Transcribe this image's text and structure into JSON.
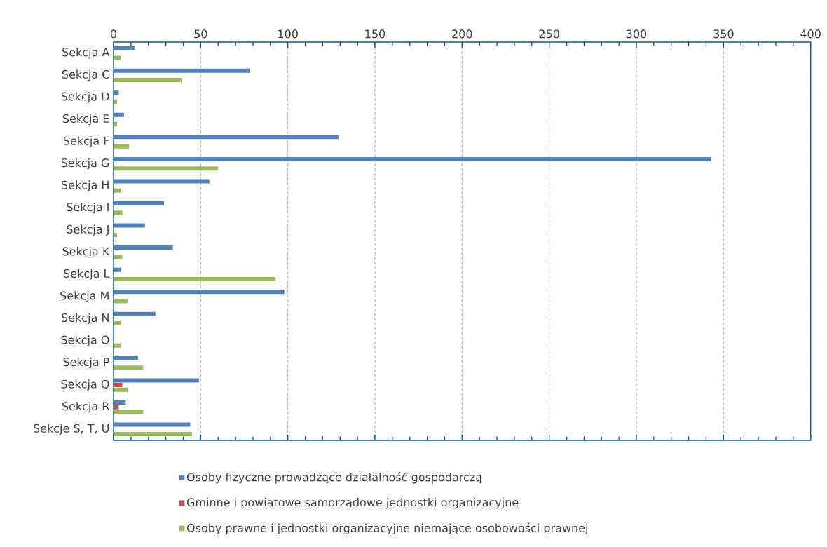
{
  "chart_data": {
    "type": "bar",
    "orientation": "horizontal",
    "categories": [
      "Sekcja A",
      "Sekcja C",
      "Sekcja D",
      "Sekcja E",
      "Sekcja F",
      "Sekcja G",
      "Sekcja H",
      "Sekcja I",
      "Sekcja J",
      "Sekcja K",
      "Sekcja L",
      "Sekcja M",
      "Sekcja N",
      "Sekcja O",
      "Sekcja P",
      "Sekcja Q",
      "Sekcja R",
      "Sekcje S, T, U"
    ],
    "series": [
      {
        "name": "Osoby fizyczne prowadzące działalność gospodarczą",
        "color": "#4f81bd",
        "values": [
          12,
          78,
          3,
          6,
          129,
          343,
          55,
          29,
          18,
          34,
          4,
          98,
          24,
          null,
          14,
          49,
          7,
          44
        ]
      },
      {
        "name": "Gminne i powiatowe samorządowe jednostki organizacyjne",
        "color": "#c0504d",
        "values": [
          null,
          null,
          null,
          null,
          null,
          null,
          null,
          null,
          null,
          null,
          null,
          null,
          null,
          null,
          null,
          5,
          3,
          null
        ]
      },
      {
        "name": "Osoby prawne i jednostki organizacyjne niemające osobowości prawnej",
        "color": "#9bbb59",
        "values": [
          4,
          39,
          2,
          2,
          9,
          60,
          4,
          5,
          2,
          5,
          93,
          8,
          4,
          4,
          17,
          8,
          17,
          45
        ]
      }
    ],
    "xlim": [
      0,
      400
    ],
    "xticks": [
      0,
      50,
      100,
      150,
      200,
      250,
      300,
      350,
      400
    ],
    "grid": "x",
    "legend": "bottom"
  }
}
